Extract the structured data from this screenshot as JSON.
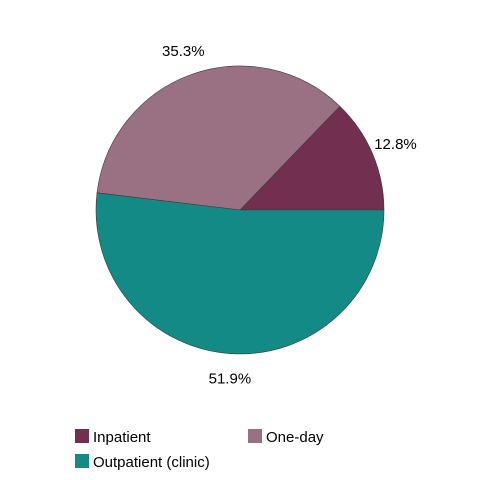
{
  "chart_data": {
    "type": "pie",
    "title": "",
    "categories": [
      "Inpatient",
      "One-day",
      "Outpatient (clinic)"
    ],
    "values": [
      12.8,
      35.3,
      51.9
    ],
    "labels": [
      "12.8%",
      "35.3%",
      "51.9%"
    ],
    "colors": [
      "#722F50",
      "#9A7083",
      "#138A85"
    ],
    "start_angle_deg": 0,
    "direction": "counterclockwise",
    "legend": {
      "position": "bottom",
      "columns": 2
    }
  }
}
